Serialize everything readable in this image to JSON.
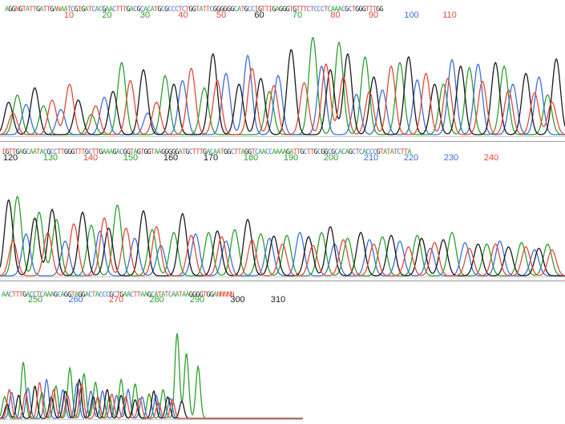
{
  "colors": {
    "A": "#2ca02c",
    "C": "#3b6fd8",
    "G": "#1a1a1a",
    "T": "#e04a3a",
    "N": "#e04a3a"
  },
  "chart_data": [
    {
      "type": "line",
      "title": "",
      "sequence": "AGGNGTATTGATTGANAATCGIGATCACGAACTTTGACGCACATGCGCCCTCTGGTATTCGGGGGGCATGCCIGTTIGAGGGTGTTTCTCCCTCAAACGCTGGGTTTGG",
      "x": [
        10,
        20,
        30,
        40,
        50,
        60,
        70,
        80,
        90,
        100,
        110
      ],
      "tick_colors": [
        "#e04a3a",
        "#2ca02c",
        "#2ca02c",
        "#e04a3a",
        "#e04a3a",
        "#1a1a1a",
        "#2ca02c",
        "#e04a3a",
        "#e04a3a",
        "#3b6fd8",
        "#e04a3a"
      ],
      "series": [
        {
          "channel": "A",
          "peaks": [
            [
              4,
              55
            ],
            [
              10,
              40
            ],
            [
              21,
              28
            ],
            [
              28,
              100
            ],
            [
              38,
              82
            ],
            [
              47,
              65
            ],
            [
              62,
              60
            ],
            [
              72,
              135
            ],
            [
              78,
              128
            ],
            [
              84,
              108
            ],
            [
              92,
              100
            ],
            [
              102,
              70
            ],
            [
              108,
              93
            ],
            [
              116,
              95
            ],
            [
              126,
              55
            ]
          ]
        },
        {
          "channel": "C",
          "peaks": [
            [
              6,
              42
            ],
            [
              14,
              35
            ],
            [
              24,
              52
            ],
            [
              34,
              30
            ],
            [
              42,
              75
            ],
            [
              52,
              85
            ],
            [
              57,
              110
            ],
            [
              64,
              82
            ],
            [
              74,
              95
            ],
            [
              82,
              56
            ],
            [
              88,
              62
            ],
            [
              96,
              76
            ],
            [
              104,
              104
            ],
            [
              110,
              98
            ],
            [
              118,
              70
            ],
            [
              124,
              80
            ]
          ]
        },
        {
          "channel": "G",
          "peaks": [
            [
              2,
              45
            ],
            [
              8,
              65
            ],
            [
              18,
              48
            ],
            [
              26,
              60
            ],
            [
              33,
              90
            ],
            [
              40,
              70
            ],
            [
              49,
              112
            ],
            [
              55,
              70
            ],
            [
              60,
              78
            ],
            [
              67,
              118
            ],
            [
              76,
              90
            ],
            [
              80,
              112
            ],
            [
              86,
              80
            ],
            [
              94,
              108
            ],
            [
              100,
              70
            ],
            [
              106,
              95
            ],
            [
              114,
              100
            ],
            [
              121,
              85
            ],
            [
              128,
              105
            ]
          ]
        },
        {
          "channel": "T",
          "peaks": [
            [
              3,
              30
            ],
            [
              12,
              48
            ],
            [
              16,
              70
            ],
            [
              22,
              40
            ],
            [
              30,
              75
            ],
            [
              36,
              45
            ],
            [
              44,
              92
            ],
            [
              50,
              75
            ],
            [
              58,
              92
            ],
            [
              63,
              68
            ],
            [
              70,
              72
            ],
            [
              75,
              98
            ],
            [
              79,
              80
            ],
            [
              85,
              60
            ],
            [
              90,
              95
            ],
            [
              98,
              85
            ],
            [
              103,
              78
            ],
            [
              111,
              74
            ],
            [
              117,
              62
            ],
            [
              123,
              58
            ],
            [
              127,
              45
            ]
          ]
        }
      ]
    },
    {
      "type": "line",
      "title": "",
      "sequence": "IGTTGAGCAATACGCCTTGGGTTTGCTTGAAAGACGGTAGTGGTAAGGGGGATGCTTTGACAATGGCTTAGGTCAACCAAAAGATTGCTTGCGGCGCACAGCTCACCCGTATATCTTA",
      "x": [
        120,
        130,
        140,
        150,
        160,
        170,
        180,
        190,
        200,
        210,
        220,
        230,
        240
      ],
      "tick_colors": [
        "#1a1a1a",
        "#2ca02c",
        "#e04a3a",
        "#2ca02c",
        "#1a1a1a",
        "#1a1a1a",
        "#2ca02c",
        "#2ca02c",
        "#2ca02c",
        "#3b6fd8",
        "#3b6fd8",
        "#3b6fd8",
        "#e04a3a"
      ],
      "series": [
        {
          "channel": "A",
          "peaks": [
            [
              4,
              110
            ],
            [
              9,
              88
            ],
            [
              13,
              78
            ],
            [
              21,
              70
            ],
            [
              27,
              98
            ],
            [
              35,
              64
            ],
            [
              40,
              60
            ],
            [
              48,
              60
            ],
            [
              54,
              64
            ],
            [
              60,
              58
            ],
            [
              66,
              56
            ],
            [
              74,
              60
            ],
            [
              80,
              52
            ],
            [
              88,
              54
            ],
            [
              96,
              56
            ],
            [
              104,
              60
            ],
            [
              112,
              44
            ],
            [
              120,
              46
            ],
            [
              126,
              44
            ]
          ]
        },
        {
          "channel": "C",
          "peaks": [
            [
              6,
              58
            ],
            [
              15,
              48
            ],
            [
              23,
              62
            ],
            [
              31,
              52
            ],
            [
              37,
              42
            ],
            [
              45,
              58
            ],
            [
              52,
              48
            ],
            [
              62,
              52
            ],
            [
              69,
              60
            ],
            [
              77,
              44
            ],
            [
              85,
              50
            ],
            [
              92,
              48
            ],
            [
              99,
              38
            ],
            [
              107,
              46
            ],
            [
              115,
              48
            ],
            [
              123,
              36
            ]
          ]
        },
        {
          "channel": "G",
          "peaks": [
            [
              2,
              105
            ],
            [
              8,
              80
            ],
            [
              12,
              92
            ],
            [
              19,
              88
            ],
            [
              25,
              66
            ],
            [
              33,
              90
            ],
            [
              42,
              86
            ],
            [
              50,
              62
            ],
            [
              57,
              78
            ],
            [
              63,
              55
            ],
            [
              71,
              54
            ],
            [
              76,
              68
            ],
            [
              83,
              60
            ],
            [
              90,
              56
            ],
            [
              97,
              52
            ],
            [
              102,
              50
            ],
            [
              110,
              44
            ],
            [
              117,
              40
            ],
            [
              124,
              38
            ]
          ]
        },
        {
          "channel": "T",
          "peaks": [
            [
              3,
              48
            ],
            [
              11,
              60
            ],
            [
              17,
              72
            ],
            [
              24,
              80
            ],
            [
              29,
              66
            ],
            [
              36,
              68
            ],
            [
              44,
              56
            ],
            [
              51,
              54
            ],
            [
              58,
              50
            ],
            [
              65,
              44
            ],
            [
              72,
              42
            ],
            [
              79,
              50
            ],
            [
              86,
              44
            ],
            [
              94,
              40
            ],
            [
              100,
              46
            ],
            [
              108,
              38
            ],
            [
              114,
              44
            ],
            [
              121,
              40
            ],
            [
              127,
              36
            ]
          ]
        }
      ]
    },
    {
      "type": "line",
      "title": "",
      "sequence": "AACTTTGACCTCAAAGCAGGTAGGACTACCCGCTGAACTTAAGCATATCAATAAGGGGTGGANNNNN",
      "x": [
        250,
        260,
        270,
        280,
        290,
        300,
        310
      ],
      "tick_colors": [
        "#2ca02c",
        "#3b6fd8",
        "#e04a3a",
        "#2ca02c",
        "#2ca02c",
        "#1a1a1a",
        "#1a1a1a"
      ],
      "series": [
        {
          "channel": "A",
          "peaks": [
            [
              2,
              30
            ],
            [
              10,
              78
            ],
            [
              18,
              36
            ],
            [
              24,
              45
            ],
            [
              30,
              70
            ],
            [
              36,
              62
            ],
            [
              41,
              50
            ],
            [
              47,
              30
            ],
            [
              52,
              54
            ],
            [
              58,
              48
            ],
            [
              64,
              34
            ],
            [
              70,
              40
            ],
            [
              76,
              118
            ],
            [
              80,
              90
            ],
            [
              85,
              72
            ]
          ]
        },
        {
          "channel": "C",
          "peaks": [
            [
              5,
              36
            ],
            [
              12,
              42
            ],
            [
              20,
              54
            ],
            [
              27,
              40
            ],
            [
              33,
              48
            ],
            [
              39,
              38
            ],
            [
              44,
              38
            ],
            [
              50,
              32
            ],
            [
              55,
              40
            ],
            [
              61,
              30
            ],
            [
              67,
              32
            ],
            [
              73,
              28
            ]
          ]
        },
        {
          "channel": "G",
          "peaks": [
            [
              3,
              20
            ],
            [
              8,
              32
            ],
            [
              15,
              45
            ],
            [
              22,
              30
            ],
            [
              28,
              38
            ],
            [
              34,
              54
            ],
            [
              40,
              30
            ],
            [
              46,
              40
            ],
            [
              52,
              32
            ],
            [
              58,
              26
            ],
            [
              66,
              38
            ],
            [
              72,
              30
            ],
            [
              78,
              24
            ]
          ]
        },
        {
          "channel": "T",
          "peaks": [
            [
              4,
              40
            ],
            [
              11,
              36
            ],
            [
              17,
              50
            ],
            [
              23,
              40
            ],
            [
              29,
              32
            ],
            [
              35,
              48
            ],
            [
              42,
              30
            ],
            [
              48,
              34
            ],
            [
              54,
              30
            ],
            [
              60,
              28
            ],
            [
              68,
              22
            ],
            [
              74,
              26
            ]
          ]
        }
      ]
    }
  ]
}
